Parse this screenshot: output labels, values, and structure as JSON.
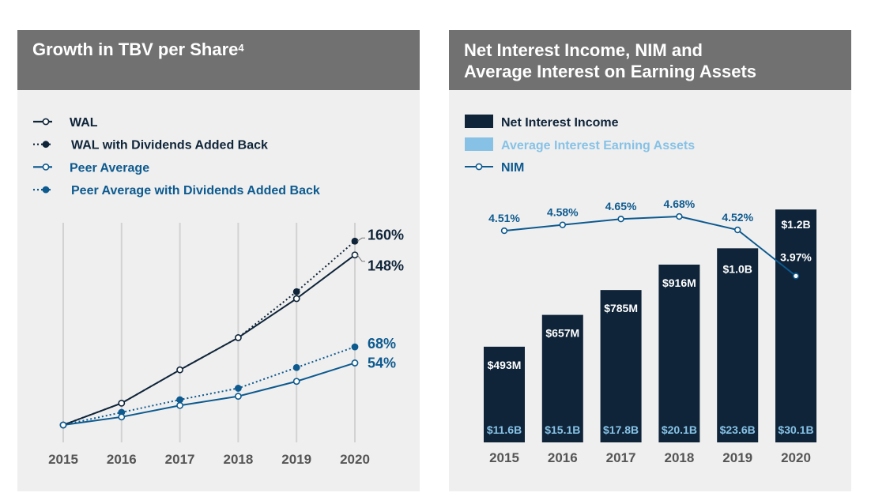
{
  "colors": {
    "navy": "#0f2439",
    "blue": "#0d5a8f",
    "light_blue": "#87c2e6",
    "header_bg": "#717172",
    "panel_bg": "#efefef",
    "grid": "#d2d2d2",
    "axis_text": "#555555"
  },
  "chart_data": [
    {
      "type": "line",
      "title": "Growth in TBV per Share",
      "title_superscript": "4",
      "x": [
        "2015",
        "2016",
        "2017",
        "2018",
        "2019",
        "2020"
      ],
      "ylim": [
        0,
        165
      ],
      "grid": "vertical",
      "legend_position": "top-left",
      "series": [
        {
          "name": "WAL",
          "style": "solid",
          "color": "navy",
          "marker": "hollow",
          "values": [
            0,
            19,
            48,
            76,
            110,
            148
          ],
          "end_label": "148%"
        },
        {
          "name": "WAL with Dividends Added Back",
          "style": "dotted",
          "color": "navy",
          "marker": "filled",
          "values": [
            0,
            19,
            48,
            76,
            116,
            160
          ],
          "end_label": "160%"
        },
        {
          "name": "Peer Average",
          "style": "solid",
          "color": "blue",
          "marker": "hollow",
          "values": [
            0,
            7,
            17,
            25,
            38,
            54
          ],
          "end_label": "54%"
        },
        {
          "name": "Peer Average with Dividends Added Back",
          "style": "dotted",
          "color": "blue",
          "marker": "filled",
          "values": [
            0,
            11,
            22,
            32,
            50,
            68
          ],
          "end_label": "68%"
        }
      ]
    },
    {
      "type": "bar",
      "title_lines": [
        "Net Interest Income, NIM and",
        "Average Interest on Earning Assets"
      ],
      "categories": [
        "2015",
        "2016",
        "2017",
        "2018",
        "2019",
        "2020"
      ],
      "legend_position": "top-left",
      "legend": [
        "Net Interest Income",
        "Average Interest Earning Assets",
        "NIM"
      ],
      "series": [
        {
          "name": "Net Interest Income",
          "unit": "$M",
          "values": [
            493,
            657,
            785,
            916,
            1000,
            1200
          ],
          "labels": [
            "$493M",
            "$657M",
            "$785M",
            "$916M",
            "$1.0B",
            "$1.2B"
          ]
        },
        {
          "name": "Average Interest Earning Assets",
          "unit": "$B",
          "values": [
            11.6,
            15.1,
            17.8,
            20.1,
            23.6,
            30.1
          ],
          "labels": [
            "$11.6B",
            "$15.1B",
            "$17.8B",
            "$20.1B",
            "$23.6B",
            "$30.1B"
          ]
        },
        {
          "name": "NIM",
          "type": "line",
          "unit": "%",
          "values": [
            4.51,
            4.58,
            4.65,
            4.68,
            4.52,
            3.97
          ],
          "labels": [
            "4.51%",
            "4.58%",
            "4.65%",
            "4.68%",
            "4.52%",
            "3.97%"
          ]
        }
      ],
      "bar_ylim": [
        0,
        1270
      ],
      "nim_ylim": [
        3.7,
        4.85
      ]
    }
  ]
}
